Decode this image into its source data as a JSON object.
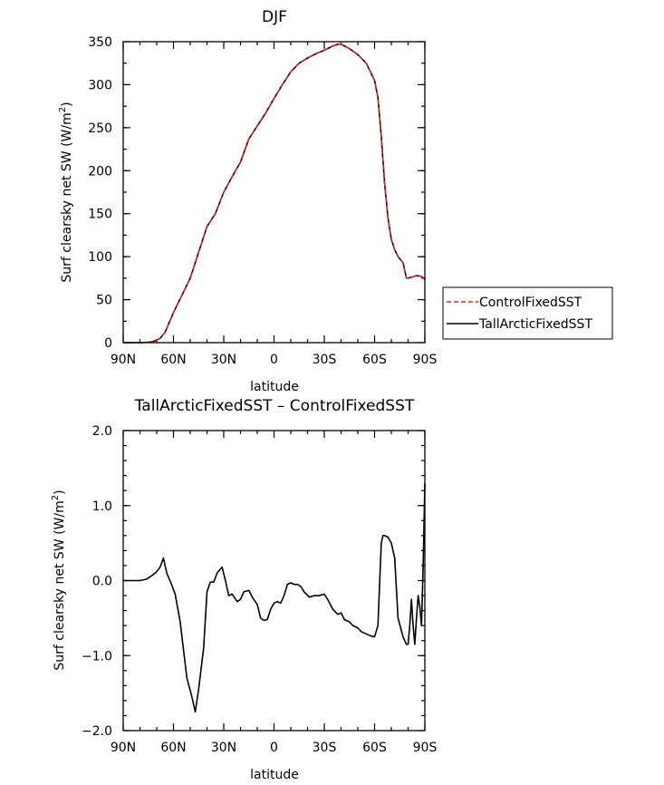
{
  "chart_data": [
    {
      "type": "line",
      "title": "DJF",
      "xlabel": "latitude",
      "ylabel": "Surf clearsky net SW (W/m",
      "ylabel_sup": "2",
      "ylabel_close": ")",
      "xlim": [
        90,
        -90
      ],
      "ylim": [
        0,
        350
      ],
      "x_ticks": [
        {
          "value": 90,
          "label": "90N"
        },
        {
          "value": 60,
          "label": "60N"
        },
        {
          "value": 30,
          "label": "30N"
        },
        {
          "value": 0,
          "label": "0"
        },
        {
          "value": -30,
          "label": "30S"
        },
        {
          "value": -60,
          "label": "60S"
        },
        {
          "value": -90,
          "label": "90S"
        }
      ],
      "y_ticks": [
        {
          "value": 0,
          "label": "0"
        },
        {
          "value": 50,
          "label": "50"
        },
        {
          "value": 100,
          "label": "100"
        },
        {
          "value": 150,
          "label": "150"
        },
        {
          "value": 200,
          "label": "200"
        },
        {
          "value": 250,
          "label": "250"
        },
        {
          "value": 300,
          "label": "300"
        },
        {
          "value": 350,
          "label": "350"
        }
      ],
      "legend": {
        "placement": "right"
      },
      "series": [
        {
          "name": "ControlFixedSST",
          "color": "#e02020",
          "dash": "dashed",
          "x": [
            90,
            85,
            80,
            75,
            72,
            70,
            68,
            65,
            60,
            55,
            50,
            45,
            40,
            35,
            30,
            25,
            20,
            15,
            10,
            5,
            0,
            -5,
            -10,
            -15,
            -20,
            -25,
            -30,
            -35,
            -38,
            -40,
            -45,
            -50,
            -55,
            -60,
            -62,
            -64,
            -66,
            -68,
            -70,
            -72,
            -74,
            -77,
            -79,
            -80,
            -82,
            -85,
            -88,
            -90
          ],
          "y": [
            0,
            0,
            0,
            0.5,
            1.5,
            3,
            5,
            12,
            35,
            55,
            75,
            105,
            135,
            150,
            175,
            193,
            210,
            237,
            252,
            267,
            284,
            300,
            315,
            325,
            331,
            336,
            340,
            345,
            347,
            347,
            342,
            335,
            325,
            305,
            285,
            240,
            185,
            145,
            120,
            108,
            100,
            93,
            75,
            75,
            76,
            78,
            77,
            74
          ]
        },
        {
          "name": "TallArcticFixedSST",
          "color": "#000000",
          "dash": "solid",
          "x": [
            90,
            85,
            80,
            75,
            72,
            70,
            68,
            65,
            60,
            55,
            50,
            45,
            40,
            35,
            30,
            25,
            20,
            15,
            10,
            5,
            0,
            -5,
            -10,
            -15,
            -20,
            -25,
            -30,
            -35,
            -38,
            -40,
            -45,
            -50,
            -55,
            -60,
            -62,
            -64,
            -66,
            -68,
            -70,
            -72,
            -74,
            -77,
            -79,
            -80,
            -82,
            -85,
            -88,
            -90
          ],
          "y": [
            0,
            0,
            0,
            0.5,
            1.5,
            3,
            5,
            12,
            35,
            55,
            75,
            105,
            135,
            150,
            175,
            193,
            210,
            237,
            252,
            267,
            284,
            300,
            315,
            325,
            331,
            336,
            340,
            345,
            347,
            347,
            342,
            335,
            325,
            305,
            285,
            240,
            185,
            145,
            120,
            108,
            100,
            93,
            75,
            75,
            76,
            78,
            77,
            74
          ]
        }
      ]
    },
    {
      "type": "line",
      "title": "TallArcticFixedSST – ControlFixedSST",
      "xlabel": "latitude",
      "ylabel": "Surf clearsky net SW (W/m",
      "ylabel_sup": "2",
      "ylabel_close": ")",
      "xlim": [
        90,
        -90
      ],
      "ylim": [
        -2.0,
        2.0
      ],
      "x_ticks": [
        {
          "value": 90,
          "label": "90N"
        },
        {
          "value": 60,
          "label": "60N"
        },
        {
          "value": 30,
          "label": "30N"
        },
        {
          "value": 0,
          "label": "0"
        },
        {
          "value": -30,
          "label": "30S"
        },
        {
          "value": -60,
          "label": "60S"
        },
        {
          "value": -90,
          "label": "90S"
        }
      ],
      "y_ticks": [
        {
          "value": -2.0,
          "label": "−2.0"
        },
        {
          "value": -1.0,
          "label": "−1.0"
        },
        {
          "value": 0.0,
          "label": "0.0"
        },
        {
          "value": 1.0,
          "label": "1.0"
        },
        {
          "value": 2.0,
          "label": "2.0"
        }
      ],
      "series": [
        {
          "color": "#000000",
          "dash": "solid",
          "x": [
            90,
            85,
            80,
            76,
            72,
            70,
            68,
            66,
            64,
            61,
            59,
            56,
            52,
            49,
            47,
            45,
            42,
            40,
            38,
            36,
            34,
            31,
            29,
            27,
            25,
            22,
            20,
            18,
            15,
            13,
            10,
            8,
            6,
            4,
            2,
            0,
            -2,
            -4,
            -6,
            -8,
            -10,
            -12,
            -14,
            -16,
            -18,
            -21,
            -24,
            -27,
            -30,
            -32,
            -35,
            -38,
            -40,
            -42,
            -45,
            -47,
            -50,
            -52,
            -54,
            -56,
            -58,
            -60,
            -62,
            -64,
            -65,
            -66,
            -68,
            -70,
            -72,
            -74,
            -77,
            -79,
            -80,
            -81,
            -82,
            -83,
            -84,
            -85,
            -86,
            -87,
            -88,
            -89,
            -90
          ],
          "y": [
            0.0,
            0.0,
            0.0,
            0.02,
            0.08,
            0.12,
            0.18,
            0.3,
            0.1,
            -0.06,
            -0.18,
            -0.55,
            -1.3,
            -1.55,
            -1.75,
            -1.45,
            -0.9,
            -0.15,
            -0.02,
            -0.02,
            0.1,
            0.18,
            0.0,
            -0.2,
            -0.18,
            -0.28,
            -0.25,
            -0.15,
            -0.13,
            -0.22,
            -0.32,
            -0.5,
            -0.53,
            -0.52,
            -0.38,
            -0.3,
            -0.28,
            -0.3,
            -0.2,
            -0.05,
            -0.03,
            -0.05,
            -0.05,
            -0.08,
            -0.15,
            -0.22,
            -0.2,
            -0.2,
            -0.18,
            -0.25,
            -0.38,
            -0.45,
            -0.43,
            -0.52,
            -0.55,
            -0.6,
            -0.63,
            -0.68,
            -0.7,
            -0.72,
            -0.74,
            -0.75,
            -0.6,
            0.5,
            0.6,
            0.6,
            0.58,
            0.5,
            0.3,
            -0.5,
            -0.75,
            -0.85,
            -0.85,
            -0.6,
            -0.25,
            -0.6,
            -0.85,
            -0.5,
            -0.2,
            -0.35,
            -0.6,
            0.2,
            1.3
          ]
        }
      ]
    }
  ]
}
